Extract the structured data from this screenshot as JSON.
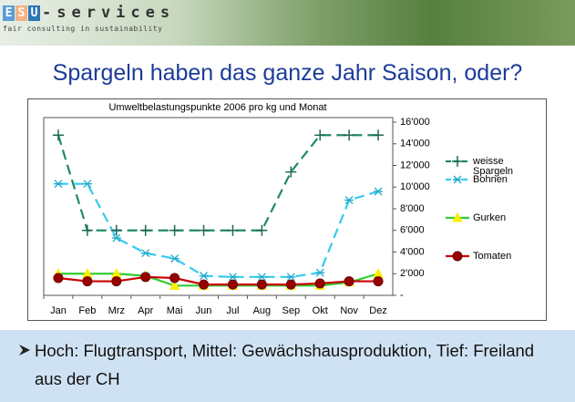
{
  "logo": {
    "letters": [
      "E",
      "S",
      "U"
    ],
    "rest": "-services",
    "tagline": "fair consulting in sustainability"
  },
  "slide_title": "Spargeln haben das ganze Jahr Saison, oder?",
  "bullet": "Hoch: Flugtransport, Mittel: Gewächshausproduktion, Tief: Freiland aus der CH",
  "chart_data": {
    "type": "line",
    "title": "Umweltbelastungspunkte 2006 pro kg und Monat",
    "categories": [
      "Jan",
      "Feb",
      "Mrz",
      "Apr",
      "Mai",
      "Jun",
      "Jul",
      "Aug",
      "Sep",
      "Okt",
      "Nov",
      "Dez"
    ],
    "ylim": [
      0,
      16000
    ],
    "yticks": [
      {
        "value": 0,
        "label": "-"
      },
      {
        "value": 2000,
        "label": "2'000"
      },
      {
        "value": 4000,
        "label": "4'000"
      },
      {
        "value": 6000,
        "label": "6'000"
      },
      {
        "value": 8000,
        "label": "8'000"
      },
      {
        "value": 10000,
        "label": "10'000"
      },
      {
        "value": 12000,
        "label": "12'000"
      },
      {
        "value": 14000,
        "label": "14'000"
      },
      {
        "value": 16000,
        "label": "16'000"
      }
    ],
    "y_axis_side": "right",
    "grid": false,
    "legend": "right",
    "series": [
      {
        "name": "weisse Spargeln",
        "color": "#1f8a6a",
        "marker": "plus",
        "marker_color": "#1f6a50",
        "dashed": true,
        "values": [
          14800,
          6000,
          6000,
          6000,
          6000,
          6000,
          6000,
          6000,
          11400,
          14800,
          14800,
          14800
        ]
      },
      {
        "name": "Bohnen",
        "color": "#33ccee",
        "marker": "asterisk",
        "marker_color": "#22aacc",
        "dashed": true,
        "values": [
          10300,
          10300,
          5300,
          3900,
          3400,
          1800,
          1700,
          1700,
          1700,
          2100,
          8800,
          9600
        ]
      },
      {
        "name": "Gurken",
        "color": "#33cc33",
        "marker": "triangle",
        "marker_color": "#ffee00",
        "dashed": false,
        "values": [
          2000,
          2000,
          2000,
          1800,
          900,
          900,
          900,
          900,
          900,
          900,
          1200,
          2000
        ]
      },
      {
        "name": "Tomaten",
        "color": "#cc0000",
        "marker": "circle",
        "marker_color": "#990000",
        "dashed": false,
        "values": [
          1600,
          1300,
          1300,
          1700,
          1600,
          1000,
          1000,
          1000,
          1000,
          1100,
          1300,
          1300
        ]
      }
    ]
  }
}
